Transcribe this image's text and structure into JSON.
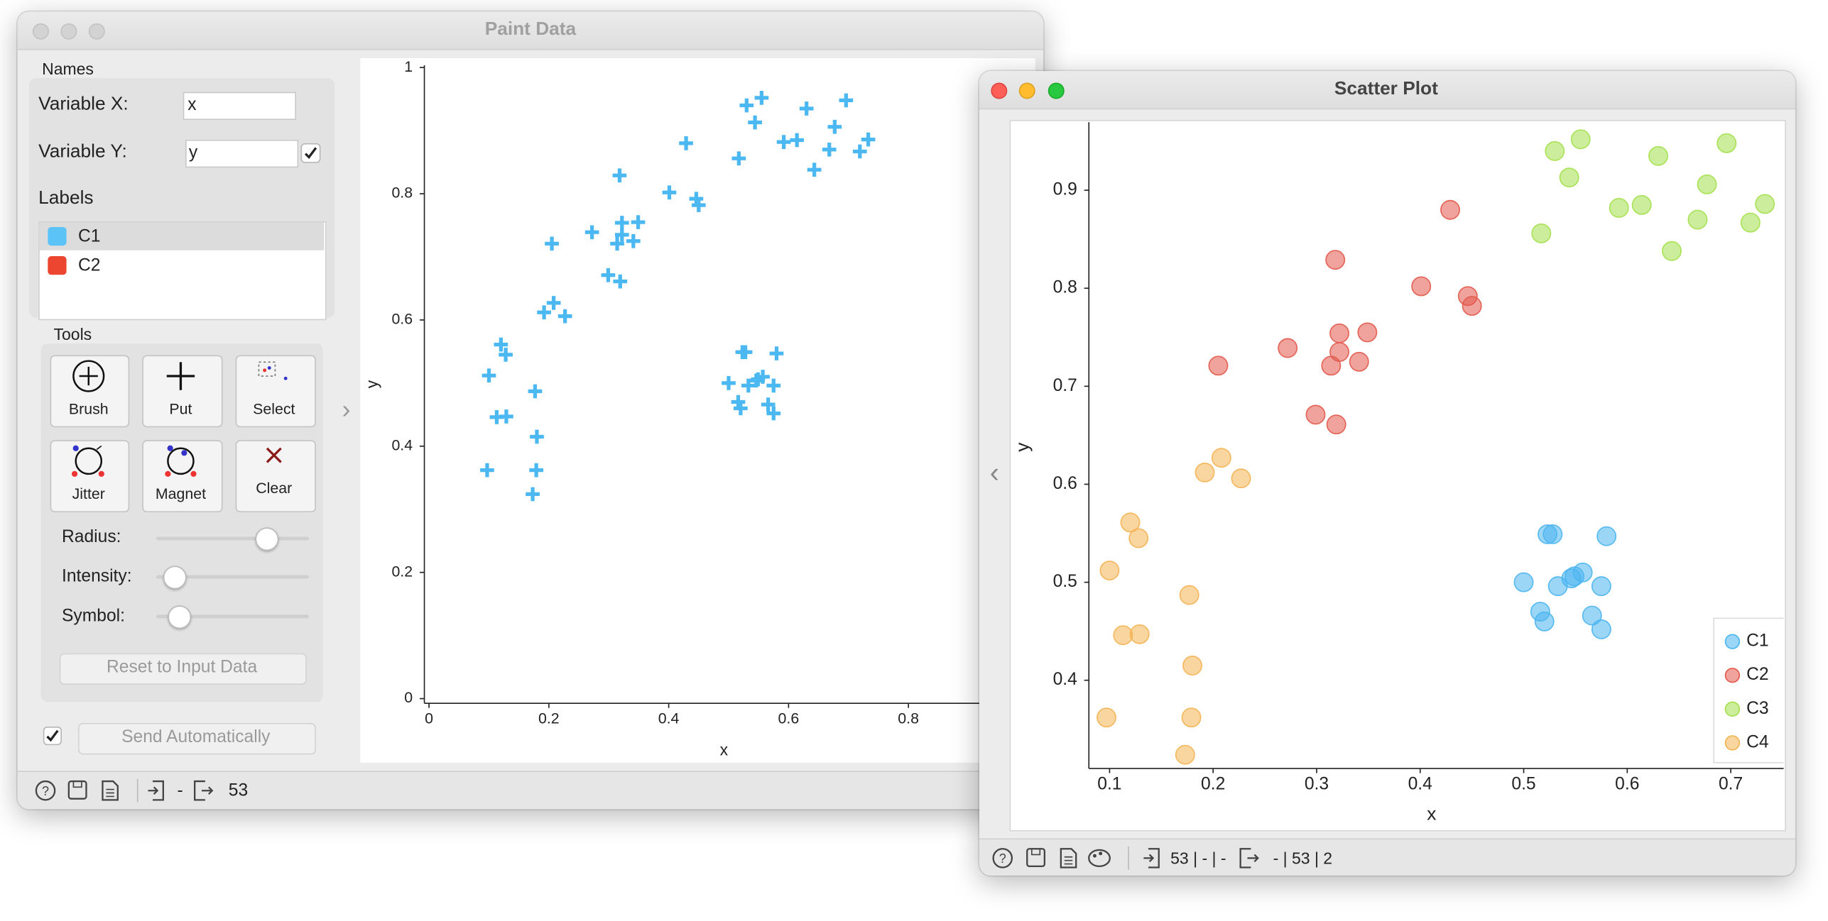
{
  "paint_data": {
    "title": "Paint Data",
    "names": {
      "heading": "Names",
      "var_x_label": "Variable X:",
      "var_x_value": "x",
      "var_y_label": "Variable Y:",
      "var_y_value": "y"
    },
    "labels": {
      "heading": "Labels",
      "items": [
        {
          "name": "C1",
          "color": "#5cc3f7"
        },
        {
          "name": "C2",
          "color": "#ec4630"
        }
      ]
    },
    "tools": {
      "heading": "Tools",
      "buttons": [
        "Brush",
        "Put",
        "Select",
        "Jitter",
        "Magnet",
        "Clear"
      ],
      "sliders": [
        "Radius:",
        "Intensity:",
        "Symbol:"
      ]
    },
    "reset_button": "Reset to Input Data",
    "send_button": "Send Automatically",
    "status": {
      "input": "-",
      "output": "53"
    }
  },
  "scatter_window": {
    "title": "Scatter Plot",
    "status": {
      "input": "53 | - | -",
      "output": "- | 53 | 2"
    }
  },
  "chart_data": [
    {
      "type": "scatter",
      "marker": "plus",
      "x_label": "x",
      "y_label": "y",
      "color": "#4cb8f2",
      "x": [
        0.5,
        0.523,
        0.528,
        0.58,
        0.533,
        0.546,
        0.557,
        0.575,
        0.516,
        0.52,
        0.566,
        0.575,
        0.549,
        0.429,
        0.318,
        0.401,
        0.446,
        0.45,
        0.205,
        0.272,
        0.322,
        0.349,
        0.322,
        0.314,
        0.341,
        0.299,
        0.319,
        0.555,
        0.53,
        0.544,
        0.517,
        0.63,
        0.696,
        0.677,
        0.592,
        0.614,
        0.668,
        0.643,
        0.719,
        0.733,
        0.208,
        0.192,
        0.227,
        0.12,
        0.128,
        0.1,
        0.177,
        0.113,
        0.129,
        0.18,
        0.097,
        0.179,
        0.173
      ],
      "y": [
        0.5,
        0.549,
        0.549,
        0.547,
        0.496,
        0.504,
        0.51,
        0.496,
        0.47,
        0.46,
        0.466,
        0.452,
        0.506,
        0.88,
        0.829,
        0.802,
        0.792,
        0.782,
        0.721,
        0.739,
        0.754,
        0.755,
        0.735,
        0.721,
        0.725,
        0.671,
        0.661,
        0.952,
        0.94,
        0.913,
        0.856,
        0.935,
        0.948,
        0.906,
        0.882,
        0.885,
        0.87,
        0.838,
        0.867,
        0.886,
        0.627,
        0.612,
        0.606,
        0.561,
        0.545,
        0.512,
        0.487,
        0.446,
        0.447,
        0.415,
        0.362,
        0.362,
        0.324
      ],
      "xlim": [
        0,
        1
      ],
      "ylim": [
        0,
        1
      ],
      "xticks": [
        0,
        0.2,
        0.4,
        0.6,
        0.8
      ],
      "yticks": [
        0,
        0.2,
        0.4,
        0.6,
        0.8,
        1
      ]
    },
    {
      "type": "scatter",
      "marker": "circle",
      "x_label": "x",
      "y_label": "y",
      "legend": "lower right",
      "series": [
        {
          "name": "C1",
          "color": "#4ab5f0",
          "x": [
            0.5,
            0.523,
            0.528,
            0.58,
            0.533,
            0.546,
            0.557,
            0.575,
            0.516,
            0.52,
            0.566,
            0.575,
            0.549
          ],
          "y": [
            0.5,
            0.549,
            0.549,
            0.547,
            0.496,
            0.504,
            0.51,
            0.496,
            0.47,
            0.46,
            0.466,
            0.452,
            0.506
          ]
        },
        {
          "name": "C2",
          "color": "#e2584b",
          "x": [
            0.429,
            0.318,
            0.401,
            0.446,
            0.45,
            0.205,
            0.272,
            0.322,
            0.349,
            0.322,
            0.314,
            0.341,
            0.299,
            0.319
          ],
          "y": [
            0.88,
            0.829,
            0.802,
            0.792,
            0.782,
            0.721,
            0.739,
            0.754,
            0.755,
            0.735,
            0.721,
            0.725,
            0.671,
            0.661
          ]
        },
        {
          "name": "C3",
          "color": "#a3e04b",
          "x": [
            0.555,
            0.53,
            0.544,
            0.517,
            0.63,
            0.696,
            0.677,
            0.592,
            0.614,
            0.668,
            0.643,
            0.719,
            0.733
          ],
          "y": [
            0.952,
            0.94,
            0.913,
            0.856,
            0.935,
            0.948,
            0.906,
            0.882,
            0.885,
            0.87,
            0.838,
            0.867,
            0.886
          ]
        },
        {
          "name": "C4",
          "color": "#f4b352",
          "x": [
            0.208,
            0.192,
            0.227,
            0.12,
            0.128,
            0.1,
            0.177,
            0.113,
            0.129,
            0.18,
            0.097,
            0.179,
            0.173
          ],
          "y": [
            0.627,
            0.612,
            0.606,
            0.561,
            0.545,
            0.512,
            0.487,
            0.446,
            0.447,
            0.415,
            0.362,
            0.362,
            0.324
          ]
        }
      ],
      "xlim": [
        0.08,
        0.75
      ],
      "ylim": [
        0.31,
        0.967
      ],
      "xticks": [
        0.1,
        0.2,
        0.3,
        0.4,
        0.5,
        0.6,
        0.7
      ],
      "yticks": [
        0.4,
        0.5,
        0.6,
        0.7,
        0.8,
        0.9
      ]
    }
  ]
}
